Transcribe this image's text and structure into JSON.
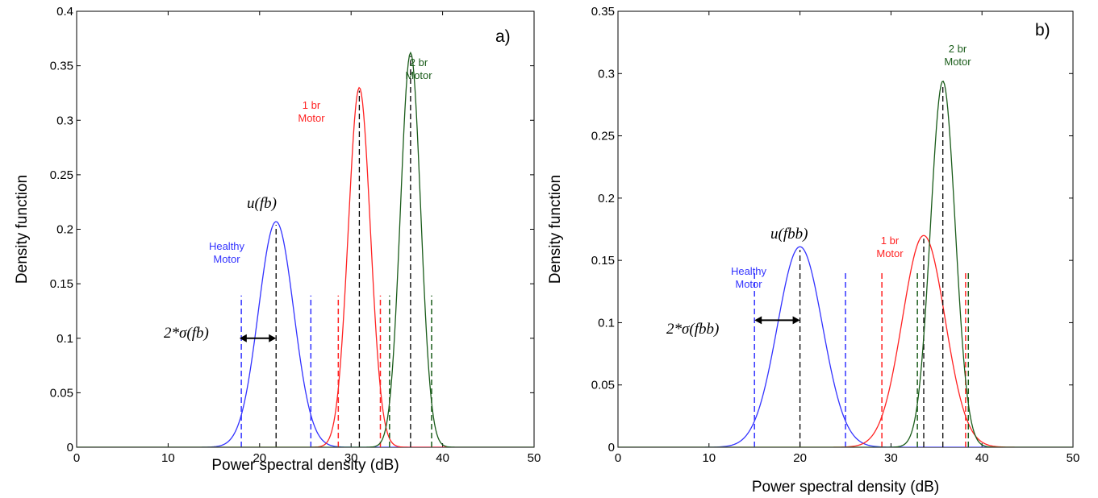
{
  "colors": {
    "healthy": "#3333ff",
    "one_br": "#ff2222",
    "two_br": "#1a5c1a",
    "mean_line": "#000000",
    "axis": "#000000"
  },
  "chart_data": [
    {
      "type": "line",
      "panel_label": "a)",
      "xlabel": "Power spectral density (dB)",
      "ylabel": "Density function",
      "xlim": [
        0,
        50
      ],
      "ylim": [
        0,
        0.4
      ],
      "xticks": [
        0,
        10,
        20,
        30,
        40,
        50
      ],
      "yticks": [
        0,
        0.05,
        0.1,
        0.15,
        0.2,
        0.25,
        0.3,
        0.35,
        0.4
      ],
      "grid": false,
      "series": [
        {
          "name": "Healthy Motor",
          "label_lines": [
            "Healthy",
            "Motor"
          ],
          "color_key": "healthy",
          "mean": 21.8,
          "peak": 0.207,
          "sigma_band": [
            18.0,
            25.6
          ]
        },
        {
          "name": "1 br Motor",
          "label_lines": [
            "1 br",
            "Motor"
          ],
          "color_key": "one_br",
          "mean": 30.9,
          "peak": 0.33,
          "sigma_band": [
            28.6,
            33.2
          ]
        },
        {
          "name": "2 br Motor",
          "label_lines": [
            "2 br",
            "Motor"
          ],
          "color_key": "two_br",
          "mean": 36.5,
          "peak": 0.362,
          "sigma_band": [
            34.2,
            38.8
          ]
        }
      ],
      "annotations": {
        "mean_label": "u(fb)",
        "sigma_label": "2*σ(fb)",
        "arrow_x": [
          17.8,
          21.8
        ],
        "arrow_y": 0.1
      }
    },
    {
      "type": "line",
      "panel_label": "b)",
      "xlabel": "Power spectral density (dB)",
      "ylabel": "Density function",
      "xlim": [
        0,
        50
      ],
      "ylim": [
        0,
        0.35
      ],
      "xticks": [
        0,
        10,
        20,
        30,
        40,
        50
      ],
      "yticks": [
        0,
        0.05,
        0.1,
        0.15,
        0.2,
        0.25,
        0.3,
        0.35
      ],
      "grid": false,
      "series": [
        {
          "name": "Healthy Motor",
          "label_lines": [
            "Healthy",
            "Motor"
          ],
          "color_key": "healthy",
          "mean": 20.0,
          "peak": 0.161,
          "sigma_band": [
            15.0,
            25.0
          ]
        },
        {
          "name": "1 br Motor",
          "label_lines": [
            "1 br",
            "Motor"
          ],
          "color_key": "one_br",
          "mean": 33.6,
          "peak": 0.17,
          "sigma_band": [
            29.0,
            38.2
          ]
        },
        {
          "name": "2 br Motor",
          "label_lines": [
            "2 br",
            "Motor"
          ],
          "color_key": "two_br",
          "mean": 35.7,
          "peak": 0.294,
          "sigma_band": [
            32.9,
            38.5
          ]
        }
      ],
      "annotations": {
        "mean_label": "u(fbb)",
        "sigma_label": "2*σ(fbb)",
        "arrow_x": [
          15.0,
          20.0
        ],
        "arrow_y": 0.102
      }
    }
  ]
}
